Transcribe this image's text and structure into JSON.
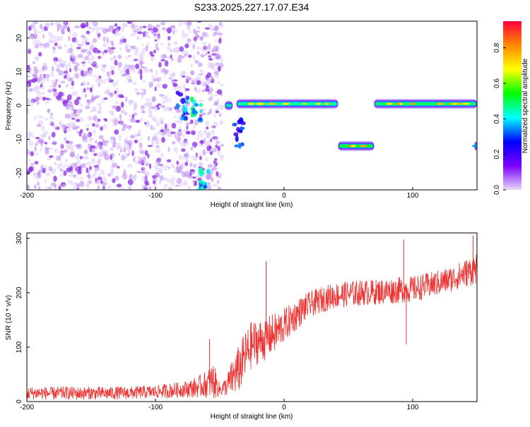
{
  "title": "S233.2025.227.17.07.E34",
  "colors": {
    "snr_line": "#ee3333",
    "spectral_blob": "#8a2be2",
    "axis": "#000000"
  },
  "chart_data": [
    {
      "type": "heatmap",
      "title": "S233.2025.227.17.07.E34",
      "xlabel": "Height of straight line (km)",
      "ylabel": "Frequency (Hz)",
      "xlim": [
        -200,
        150
      ],
      "ylim": [
        -25,
        25
      ],
      "x_ticks": [
        "-200",
        "-100",
        "0",
        "100"
      ],
      "y_ticks": [
        "20",
        "10",
        "0",
        "-10",
        "-20"
      ],
      "colorbar": {
        "label": "Normalized spectral amplitude",
        "range": [
          0.0,
          0.95
        ],
        "ticks": [
          "0.0",
          "0.2",
          "0.4",
          "0.6",
          "0.8"
        ],
        "colormap": [
          "#e8d8f8",
          "#7a00ff",
          "#0000ff",
          "#00ffff",
          "#00ff00",
          "#ffff00",
          "#ff8800",
          "#ff0040"
        ]
      },
      "noise_region": {
        "x_range": [
          -200,
          -48
        ],
        "y_range": [
          -25,
          25
        ],
        "level": 0.1
      },
      "bands": [
        {
          "x0": -46,
          "x1": -40,
          "y": 0,
          "level": 0.5
        },
        {
          "x0": -37,
          "x1": 42,
          "y": 0.5,
          "level": 0.75
        },
        {
          "x0": 42,
          "x1": 70,
          "y": -12,
          "level": 0.85
        },
        {
          "x0": 70,
          "x1": 150,
          "y": 0.5,
          "level": 0.8
        },
        {
          "x0": 148,
          "x1": 150,
          "y": -12,
          "level": 0.4
        }
      ],
      "clusters": [
        {
          "x": -79,
          "y": 0,
          "level": 0.35
        },
        {
          "x": -68,
          "y": -2,
          "level": 0.45
        },
        {
          "x": -62,
          "y": -22,
          "level": 0.5
        },
        {
          "x": -35,
          "y": -8,
          "level": 0.3
        }
      ]
    },
    {
      "type": "line",
      "xlabel": "Height of straight line (km)",
      "ylabel": "SNR (10 * v/v)",
      "xlim": [
        -200,
        150
      ],
      "ylim": [
        0,
        310
      ],
      "x_ticks": [
        "-200",
        "-100",
        "0",
        "100"
      ],
      "y_ticks": [
        "300",
        "200",
        "100",
        "0"
      ],
      "series": [
        {
          "x": [
            -200,
            -190,
            -180,
            -170,
            -160,
            -150,
            -140,
            -130,
            -120,
            -110,
            -100,
            -90,
            -80,
            -70,
            -60,
            -55,
            -50,
            -45,
            -40,
            -35,
            -30,
            -25,
            -20,
            -15,
            -10,
            -5,
            0,
            5,
            10,
            15,
            20,
            25,
            30,
            35,
            40,
            50,
            60,
            70,
            80,
            90,
            100,
            110,
            120,
            130,
            140,
            150
          ],
          "y": [
            15,
            16,
            15,
            16,
            15,
            16,
            15,
            16,
            16,
            17,
            18,
            20,
            22,
            25,
            32,
            38,
            22,
            28,
            45,
            60,
            85,
            105,
            110,
            115,
            122,
            130,
            140,
            150,
            160,
            170,
            178,
            183,
            188,
            192,
            195,
            198,
            200,
            201,
            203,
            205,
            207,
            212,
            218,
            225,
            235,
            245
          ]
        }
      ],
      "noise_amplitude": [
        12,
        12,
        12,
        12,
        12,
        12,
        12,
        12,
        12,
        12,
        12,
        14,
        14,
        18,
        25,
        35,
        12,
        18,
        35,
        45,
        45,
        45,
        40,
        40,
        38,
        36,
        32,
        30,
        28,
        26,
        24,
        24,
        24,
        24,
        24,
        24,
        24,
        24,
        24,
        24,
        24,
        24,
        24,
        24,
        26,
        28
      ],
      "spikes": [
        {
          "x": -58,
          "y": 115
        },
        {
          "x": -14,
          "y": 258
        },
        {
          "x": 93,
          "y": 298
        },
        {
          "x": 95,
          "y": 105
        },
        {
          "x": 147,
          "y": 305
        }
      ]
    }
  ]
}
